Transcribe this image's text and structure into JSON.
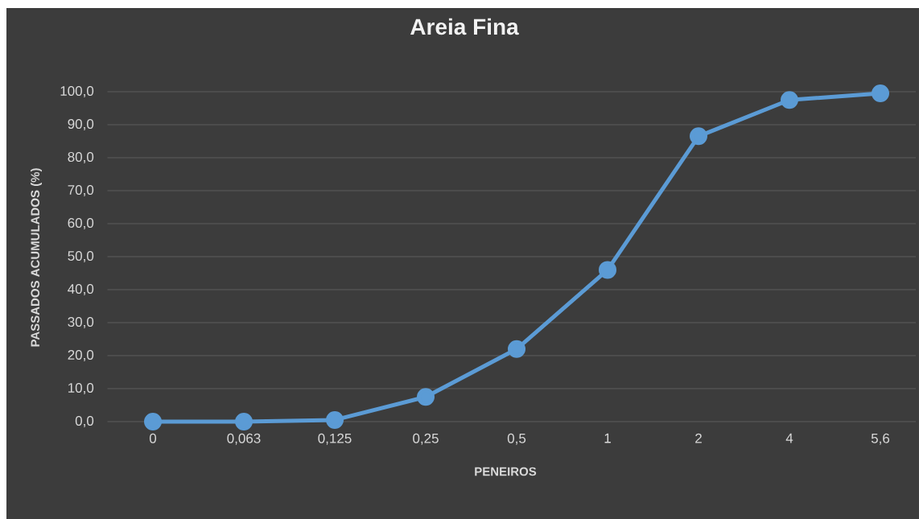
{
  "chart_data": {
    "type": "line",
    "title": "Areia Fina",
    "xlabel": "PENEIROS",
    "ylabel": "PASSADOS ACUMULADOS (%)",
    "categories": [
      "0",
      "0,063",
      "0,125",
      "0,25",
      "0,5",
      "1",
      "2",
      "4",
      "5,6"
    ],
    "series": [
      {
        "color": "#5b9bd5",
        "values": [
          0,
          0,
          0.5,
          7.5,
          22,
          46,
          86.5,
          97.5,
          99.5
        ]
      }
    ],
    "ylim": [
      0,
      100
    ],
    "yticks": [
      {
        "value": 0,
        "label": "0,0"
      },
      {
        "value": 10,
        "label": "10,0"
      },
      {
        "value": 20,
        "label": "20,0"
      },
      {
        "value": 30,
        "label": "30,0"
      },
      {
        "value": 40,
        "label": "40,0"
      },
      {
        "value": 50,
        "label": "50,0"
      },
      {
        "value": 60,
        "label": "60,0"
      },
      {
        "value": 70,
        "label": "70,0"
      },
      {
        "value": 80,
        "label": "80,0"
      },
      {
        "value": 90,
        "label": "90,0"
      },
      {
        "value": 100,
        "label": "100,0"
      }
    ],
    "grid": "y",
    "marker": "circle",
    "line_style": "solid"
  }
}
